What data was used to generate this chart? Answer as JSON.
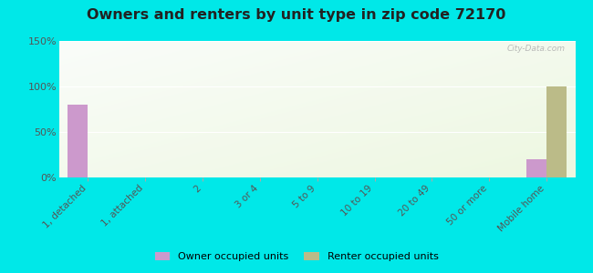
{
  "categories": [
    "1, detached",
    "1, attached",
    "2",
    "3 or 4",
    "5 to 9",
    "10 to 19",
    "20 to 49",
    "50 or more",
    "Mobile home"
  ],
  "owner_values": [
    80,
    0,
    0,
    0,
    0,
    0,
    0,
    0,
    20
  ],
  "renter_values": [
    0,
    0,
    0,
    0,
    0,
    0,
    0,
    0,
    100
  ],
  "owner_color": "#cc99cc",
  "renter_color": "#bbbb88",
  "title": "Owners and renters by unit type in zip code 72170",
  "title_fontsize": 11.5,
  "ylabel_ticks": [
    "0%",
    "50%",
    "100%",
    "150%"
  ],
  "ytick_vals": [
    0,
    50,
    100,
    150
  ],
  "ylim": [
    0,
    150
  ],
  "bg_outer": "#00e8e8",
  "legend_owner": "Owner occupied units",
  "legend_renter": "Renter occupied units",
  "bar_width": 0.35,
  "watermark": "City-Data.com"
}
